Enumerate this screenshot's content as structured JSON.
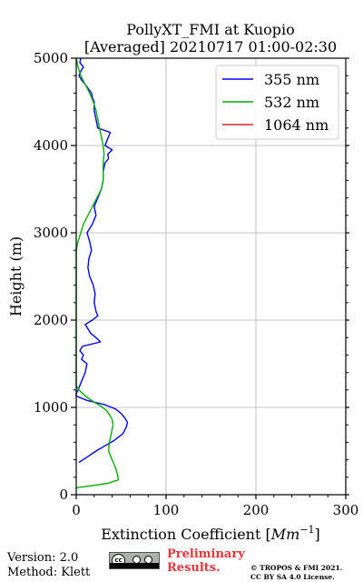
{
  "chart_data": {
    "type": "line",
    "title_line1": "PollyXT_FMI at Kuopio",
    "title_line2": "[Averaged] 20210717 01:00-02:30",
    "xlabel": "Extinction Coefficient [",
    "xlabel_unit": "Mm",
    "xlabel_exp": "−1",
    "xlabel_close": "]",
    "ylabel": "Height (m)",
    "xlim": [
      0,
      300
    ],
    "ylim": [
      0,
      5000
    ],
    "xticks": [
      "0",
      "100",
      "200",
      "300"
    ],
    "yticks": [
      "0",
      "1000",
      "2000",
      "3000",
      "4000",
      "5000"
    ],
    "grid": true,
    "legend_position": "top-right",
    "series": [
      {
        "name": "355 nm",
        "color": "#0000ff",
        "y": [
          370,
          430,
          500,
          560,
          620,
          700,
          780,
          830,
          880,
          930,
          980,
          1030,
          1080,
          1130,
          1160,
          1200,
          1250,
          1300,
          1350,
          1400,
          1450,
          1500,
          1550,
          1600,
          1650,
          1700,
          1750,
          1800,
          1850,
          1900,
          1950,
          2000,
          2050,
          2100,
          2200,
          2300,
          2400,
          2500,
          2600,
          2700,
          2800,
          2900,
          3000,
          3100,
          3200,
          3300,
          3400,
          3500,
          3600,
          3700,
          3800,
          3850,
          3900,
          3950,
          4000,
          4050,
          4100,
          4150,
          4200,
          4300,
          4400,
          4500,
          4550,
          4600,
          4700,
          4750,
          4800,
          4850,
          4900,
          4950,
          5000
        ],
        "x": [
          3,
          12,
          22,
          32,
          42,
          52,
          56,
          57,
          54,
          50,
          44,
          32,
          12,
          0,
          0,
          2,
          4,
          6,
          8,
          10,
          11,
          12,
          6,
          8,
          4,
          7,
          27,
          22,
          16,
          13,
          10,
          18,
          24,
          22,
          20,
          21,
          19,
          15,
          13,
          14,
          17,
          15,
          12,
          18,
          22,
          20,
          24,
          28,
          30,
          30,
          32,
          36,
          35,
          40,
          32,
          34,
          36,
          38,
          24,
          22,
          20,
          20,
          18,
          17,
          10,
          6,
          3,
          5,
          8,
          4,
          5
        ]
      },
      {
        "name": "532 nm",
        "color": "#00b000",
        "y": [
          80,
          100,
          130,
          170,
          230,
          300,
          400,
          500,
          600,
          700,
          800,
          860,
          900,
          960,
          1010,
          1060,
          1100,
          1150,
          1200,
          1250,
          1300,
          1400,
          1600,
          1800,
          2000,
          2200,
          2400,
          2600,
          2800,
          2900,
          3000,
          3100,
          3200,
          3300,
          3400,
          3500,
          3600,
          3700,
          3800,
          3900,
          4000,
          4100,
          4200,
          4300,
          4400,
          4500,
          4600,
          4700,
          4800,
          4900,
          5000
        ],
        "x": [
          0,
          15,
          35,
          47,
          46,
          44,
          40,
          36,
          37,
          39,
          41,
          40,
          38,
          34,
          28,
          20,
          14,
          8,
          3,
          0,
          0,
          0,
          0,
          0,
          0,
          0,
          0,
          0,
          0,
          2,
          5,
          8,
          13,
          18,
          23,
          28,
          30,
          30,
          30,
          31,
          30,
          28,
          26,
          24,
          22,
          19,
          15,
          10,
          5,
          2,
          0
        ]
      },
      {
        "name": "1064 nm",
        "color": "#d62728",
        "y": [],
        "x": []
      }
    ]
  },
  "footer": {
    "version": "Version: 2.0",
    "method": "Method: Klett",
    "prelim_line1": "Preliminary",
    "prelim_line2": "Results.",
    "copyright_line1": "© TROPOS & FMI 2021.",
    "copyright_line2": "CC BY SA 4.0 License."
  }
}
